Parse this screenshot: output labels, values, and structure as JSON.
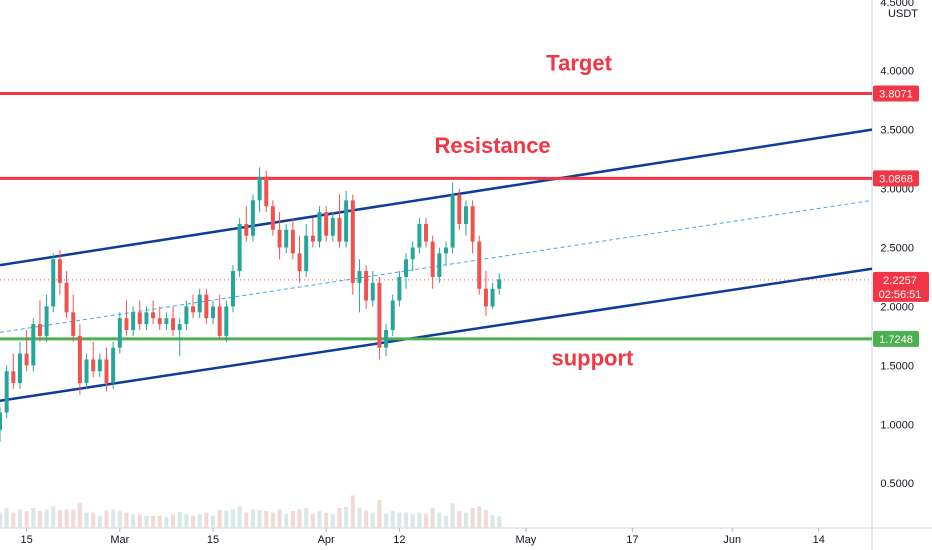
{
  "chart_data": {
    "type": "candlestick",
    "title": "",
    "currency": "USDT",
    "yscale": "linear",
    "y_ticks": [
      "0.5000",
      "1.0000",
      "1.5000",
      "2.0000",
      "2.5000",
      "3.0000",
      "3.5000",
      "4.0000",
      "4.5000"
    ],
    "y_tick_values": [
      0.5,
      1.0,
      1.5,
      2.0,
      2.5,
      3.0,
      3.5,
      4.0,
      4.5
    ],
    "ylim": [
      0.12,
      4.6
    ],
    "x_ticks": [
      {
        "label": "15",
        "day": 0
      },
      {
        "label": "Mar",
        "day": 14
      },
      {
        "label": "15",
        "day": 28
      },
      {
        "label": "Apr",
        "day": 45
      },
      {
        "label": "12",
        "day": 56
      },
      {
        "label": "May",
        "day": 75
      },
      {
        "label": "17",
        "day": 91
      },
      {
        "label": "Jun",
        "day": 106
      },
      {
        "label": "14",
        "day": 119
      }
    ],
    "xlim": [
      -4,
      127
    ],
    "colors": {
      "up": "#26a69a",
      "down": "#ef5350",
      "channel": "#0d3c9c",
      "level": "#f23645",
      "support": "#4caf50",
      "mid": "#42a5f5",
      "volume_up": "#d9e8e6",
      "volume_down": "#f2d9d8"
    },
    "grid": false,
    "legend": "none",
    "candles": [
      [
        -4,
        0.95,
        1.15,
        0.85,
        1.1
      ],
      [
        -3,
        1.1,
        1.5,
        1.05,
        1.45
      ],
      [
        -2,
        1.45,
        1.6,
        1.3,
        1.35
      ],
      [
        -1,
        1.35,
        1.7,
        1.3,
        1.6
      ],
      [
        0,
        1.6,
        1.8,
        1.45,
        1.5
      ],
      [
        1,
        1.5,
        1.9,
        1.45,
        1.85
      ],
      [
        2,
        1.85,
        2.05,
        1.7,
        1.75
      ],
      [
        3,
        1.75,
        2.1,
        1.7,
        2.0
      ],
      [
        4,
        2.0,
        2.45,
        1.95,
        2.4
      ],
      [
        5,
        2.4,
        2.48,
        2.1,
        2.2
      ],
      [
        6,
        2.2,
        2.3,
        1.9,
        1.95
      ],
      [
        7,
        1.95,
        2.1,
        1.7,
        1.75
      ],
      [
        8,
        1.75,
        1.85,
        1.25,
        1.35
      ],
      [
        9,
        1.35,
        1.6,
        1.3,
        1.55
      ],
      [
        10,
        1.55,
        1.7,
        1.4,
        1.45
      ],
      [
        11,
        1.45,
        1.6,
        1.4,
        1.55
      ],
      [
        12,
        1.55,
        1.65,
        1.28,
        1.35
      ],
      [
        13,
        1.35,
        1.7,
        1.3,
        1.65
      ],
      [
        14,
        1.65,
        1.95,
        1.6,
        1.9
      ],
      [
        15,
        1.9,
        2.05,
        1.75,
        1.8
      ],
      [
        16,
        1.8,
        2.0,
        1.75,
        1.95
      ],
      [
        17,
        1.95,
        2.05,
        1.8,
        1.85
      ],
      [
        18,
        1.85,
        2.0,
        1.8,
        1.95
      ],
      [
        19,
        1.95,
        2.05,
        1.85,
        1.9
      ],
      [
        20,
        1.9,
        2.0,
        1.8,
        1.85
      ],
      [
        21,
        1.85,
        1.95,
        1.8,
        1.9
      ],
      [
        22,
        1.9,
        2.0,
        1.75,
        1.8
      ],
      [
        23,
        1.8,
        1.9,
        1.58,
        1.85
      ],
      [
        24,
        1.85,
        2.05,
        1.8,
        2.0
      ],
      [
        25,
        2.0,
        2.1,
        1.9,
        1.95
      ],
      [
        26,
        1.95,
        2.15,
        1.9,
        2.1
      ],
      [
        27,
        2.1,
        2.15,
        1.85,
        1.9
      ],
      [
        28,
        1.9,
        2.05,
        1.85,
        2.0
      ],
      [
        29,
        2.0,
        2.1,
        1.72,
        1.75
      ],
      [
        30,
        1.75,
        2.05,
        1.7,
        2.0
      ],
      [
        31,
        2.0,
        2.35,
        1.95,
        2.3
      ],
      [
        32,
        2.3,
        2.75,
        2.25,
        2.7
      ],
      [
        33,
        2.7,
        2.85,
        2.55,
        2.6
      ],
      [
        34,
        2.6,
        2.95,
        2.55,
        2.9
      ],
      [
        35,
        2.9,
        3.18,
        2.8,
        3.1
      ],
      [
        36,
        3.1,
        3.15,
        2.8,
        2.85
      ],
      [
        37,
        2.85,
        2.9,
        2.6,
        2.65
      ],
      [
        38,
        2.65,
        2.8,
        2.4,
        2.5
      ],
      [
        39,
        2.5,
        2.7,
        2.45,
        2.65
      ],
      [
        40,
        2.65,
        2.75,
        2.4,
        2.45
      ],
      [
        41,
        2.45,
        2.6,
        2.2,
        2.3
      ],
      [
        42,
        2.3,
        2.7,
        2.25,
        2.6
      ],
      [
        43,
        2.6,
        2.75,
        2.5,
        2.55
      ],
      [
        44,
        2.55,
        2.85,
        2.5,
        2.8
      ],
      [
        45,
        2.8,
        2.85,
        2.55,
        2.6
      ],
      [
        46,
        2.6,
        2.8,
        2.55,
        2.75
      ],
      [
        47,
        2.75,
        2.95,
        2.5,
        2.55
      ],
      [
        48,
        2.55,
        2.98,
        2.5,
        2.9
      ],
      [
        49,
        2.9,
        2.95,
        2.1,
        2.2
      ],
      [
        50,
        2.2,
        2.4,
        1.95,
        2.3
      ],
      [
        51,
        2.3,
        2.35,
        1.98,
        2.05
      ],
      [
        52,
        2.05,
        2.3,
        2.0,
        2.2
      ],
      [
        53,
        2.2,
        2.25,
        1.55,
        1.65
      ],
      [
        54,
        1.65,
        1.85,
        1.58,
        1.8
      ],
      [
        55,
        1.8,
        2.1,
        1.75,
        2.05
      ],
      [
        56,
        2.05,
        2.3,
        2.0,
        2.25
      ],
      [
        57,
        2.25,
        2.45,
        2.15,
        2.4
      ],
      [
        58,
        2.4,
        2.55,
        2.3,
        2.5
      ],
      [
        59,
        2.5,
        2.75,
        2.45,
        2.7
      ],
      [
        60,
        2.7,
        2.75,
        2.5,
        2.55
      ],
      [
        61,
        2.55,
        2.6,
        2.15,
        2.25
      ],
      [
        62,
        2.25,
        2.5,
        2.2,
        2.45
      ],
      [
        63,
        2.45,
        2.55,
        2.35,
        2.5
      ],
      [
        64,
        2.5,
        3.05,
        2.45,
        2.95
      ],
      [
        65,
        2.95,
        3.0,
        2.65,
        2.7
      ],
      [
        66,
        2.7,
        2.9,
        2.6,
        2.85
      ],
      [
        67,
        2.85,
        2.9,
        2.45,
        2.55
      ],
      [
        68,
        2.55,
        2.6,
        2.1,
        2.15
      ],
      [
        69,
        2.15,
        2.3,
        1.92,
        2.0
      ],
      [
        70,
        2.0,
        2.2,
        1.98,
        2.15
      ],
      [
        71,
        2.15,
        2.28,
        2.1,
        2.23
      ]
    ],
    "annotations": [
      {
        "text": "Target",
        "price": 4.0,
        "day": 83,
        "color": "#f23645"
      },
      {
        "text": "Resistance",
        "price": 3.3,
        "day": 70,
        "color": "#f23645"
      },
      {
        "text": "support",
        "price": 1.5,
        "day": 85,
        "color": "#f23645"
      }
    ],
    "horizontal_levels": [
      {
        "price": 3.8071,
        "label": "3.8071",
        "color": "#f23645"
      },
      {
        "price": 3.0868,
        "label": "3.0868",
        "color": "#f23645"
      },
      {
        "price": 1.7248,
        "label": "1.7248",
        "color": "#4caf50"
      }
    ],
    "last_price": {
      "price": 2.2257,
      "label": "2.2257",
      "countdown": "02:56:51",
      "color": "#f23645"
    },
    "channel": {
      "upper": {
        "start": [
          -4,
          2.35
        ],
        "end": [
          127,
          3.5
        ]
      },
      "lower": {
        "start": [
          -4,
          1.2
        ],
        "end": [
          127,
          2.32
        ]
      },
      "mid": {
        "start": [
          -4,
          1.78
        ],
        "end": [
          127,
          2.9
        ]
      }
    }
  }
}
